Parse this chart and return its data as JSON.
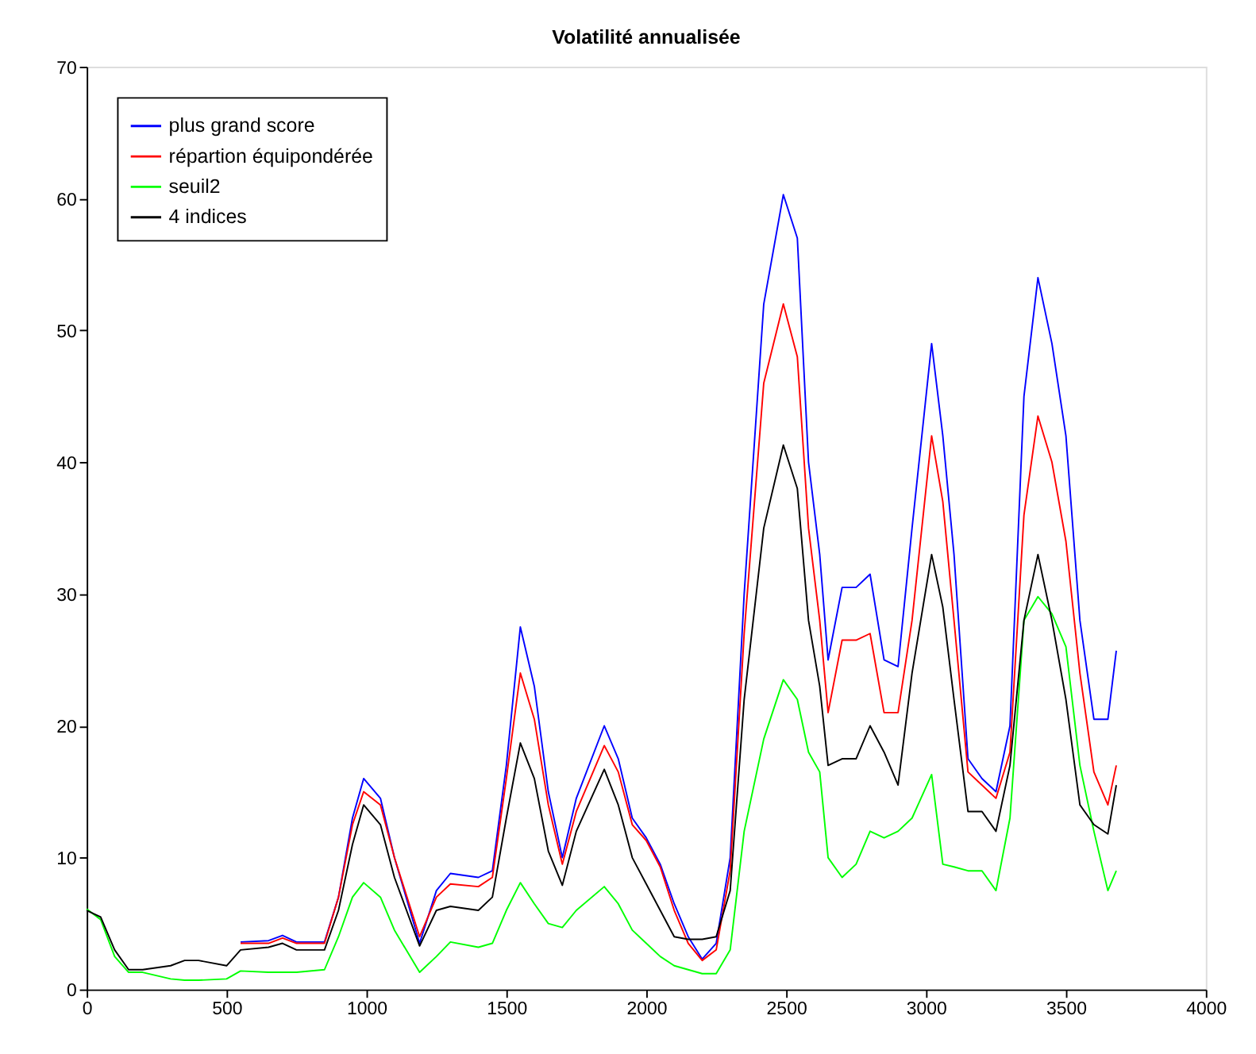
{
  "chart_data": {
    "type": "line",
    "title": "Volatilité annualisée",
    "x": [
      0,
      50,
      100,
      150,
      200,
      300,
      350,
      400,
      500,
      550,
      650,
      700,
      750,
      850,
      900,
      950,
      990,
      1050,
      1100,
      1190,
      1250,
      1300,
      1400,
      1450,
      1500,
      1550,
      1600,
      1650,
      1700,
      1750,
      1850,
      1900,
      1950,
      2000,
      2050,
      2100,
      2150,
      2200,
      2250,
      2300,
      2350,
      2420,
      2490,
      2540,
      2580,
      2620,
      2650,
      2700,
      2750,
      2800,
      2850,
      2900,
      2950,
      3020,
      3060,
      3100,
      3150,
      3200,
      3250,
      3300,
      3350,
      3400,
      3450,
      3500,
      3550,
      3600,
      3650,
      3680
    ],
    "series": [
      {
        "name": "plus grand score",
        "color": "#0000ff",
        "values": [
          null,
          null,
          null,
          null,
          null,
          null,
          null,
          null,
          null,
          3.6,
          3.7,
          4.1,
          3.6,
          3.6,
          7,
          13,
          16,
          14.5,
          10,
          3.5,
          7.5,
          8.8,
          8.5,
          9,
          17,
          27.5,
          23,
          15,
          10,
          14.5,
          20,
          17.5,
          13,
          11.5,
          9.5,
          6.5,
          4,
          2.3,
          3.5,
          10,
          30,
          52,
          60.3,
          57,
          40,
          33,
          25,
          30.5,
          30.5,
          31.5,
          25,
          24.5,
          35,
          49,
          42,
          33,
          17.5,
          16,
          15,
          20,
          45,
          54,
          49,
          42,
          28,
          20.5,
          20.5,
          25.7
        ]
      },
      {
        "name": "répartion équipondérée",
        "color": "#ff0000",
        "values": [
          null,
          null,
          null,
          null,
          null,
          null,
          null,
          null,
          null,
          3.5,
          3.5,
          3.9,
          3.5,
          3.5,
          7,
          12.5,
          15,
          14,
          10,
          4,
          7,
          8,
          7.8,
          8.5,
          16,
          24,
          20.5,
          14,
          9.5,
          13.5,
          18.5,
          16.5,
          12.5,
          11.3,
          9.3,
          6,
          3.5,
          2.2,
          3,
          9,
          27,
          46,
          52,
          48,
          35,
          28,
          21,
          26.5,
          26.5,
          27,
          21,
          21,
          28,
          42,
          37,
          28,
          16.5,
          15.5,
          14.5,
          18,
          36,
          43.5,
          40,
          34,
          24,
          16.5,
          14,
          17
        ]
      },
      {
        "name": "seuil2",
        "color": "#00ff00",
        "values": [
          6.1,
          5.3,
          2.5,
          1.3,
          1.3,
          0.8,
          0.7,
          0.7,
          0.8,
          1.4,
          1.3,
          1.3,
          1.3,
          1.5,
          4,
          7,
          8.1,
          7,
          4.5,
          1.3,
          2.5,
          3.6,
          3.2,
          3.5,
          6,
          8.1,
          6.5,
          5,
          4.7,
          6,
          7.8,
          6.5,
          4.5,
          3.5,
          2.5,
          1.8,
          1.5,
          1.2,
          1.2,
          3,
          12,
          19,
          23.5,
          22,
          18,
          16.5,
          10,
          8.5,
          9.5,
          12,
          11.5,
          12,
          13,
          16.3,
          9.5,
          9.3,
          9,
          9,
          7.5,
          13,
          28,
          29.8,
          28.5,
          26,
          17,
          12,
          7.5,
          9
        ]
      },
      {
        "name": "4 indices",
        "color": "#000000",
        "values": [
          6,
          5.5,
          3,
          1.5,
          1.5,
          1.8,
          2.2,
          2.2,
          1.8,
          3,
          3.2,
          3.5,
          3,
          3,
          6,
          11,
          14,
          12.5,
          8.5,
          3.3,
          6,
          6.3,
          6,
          7,
          13,
          18.7,
          16,
          10.5,
          7.9,
          12,
          16.7,
          14,
          10,
          8,
          6,
          4,
          3.8,
          3.8,
          4,
          7.5,
          22,
          35,
          41.3,
          38,
          28,
          23,
          17,
          17.5,
          17.5,
          20,
          18,
          15.5,
          24,
          33,
          29,
          22,
          13.5,
          13.5,
          12,
          17,
          28,
          33,
          28,
          22,
          14,
          12.5,
          11.8,
          15.5
        ]
      }
    ],
    "xlim": [
      0,
      4000
    ],
    "xticks": [
      0,
      500,
      {
        "value": 1000,
        "label": "1000"
      },
      {
        "value": 1500,
        "label": "1500"
      },
      {
        "value": 2000,
        "label": "2000"
      },
      {
        "value": 2500,
        "label": "2500"
      },
      {
        "value": 3000,
        "label": "3000"
      },
      {
        "value": 3500,
        "label": "3500"
      },
      {
        "value": 4000,
        "label": "4000"
      }
    ],
    "ylim": [
      0,
      70
    ],
    "yticks": [
      0,
      10,
      20,
      30,
      40,
      50,
      60,
      70
    ],
    "grid": false,
    "legend": "top left",
    "line_style": "solid",
    "marker": "none"
  }
}
